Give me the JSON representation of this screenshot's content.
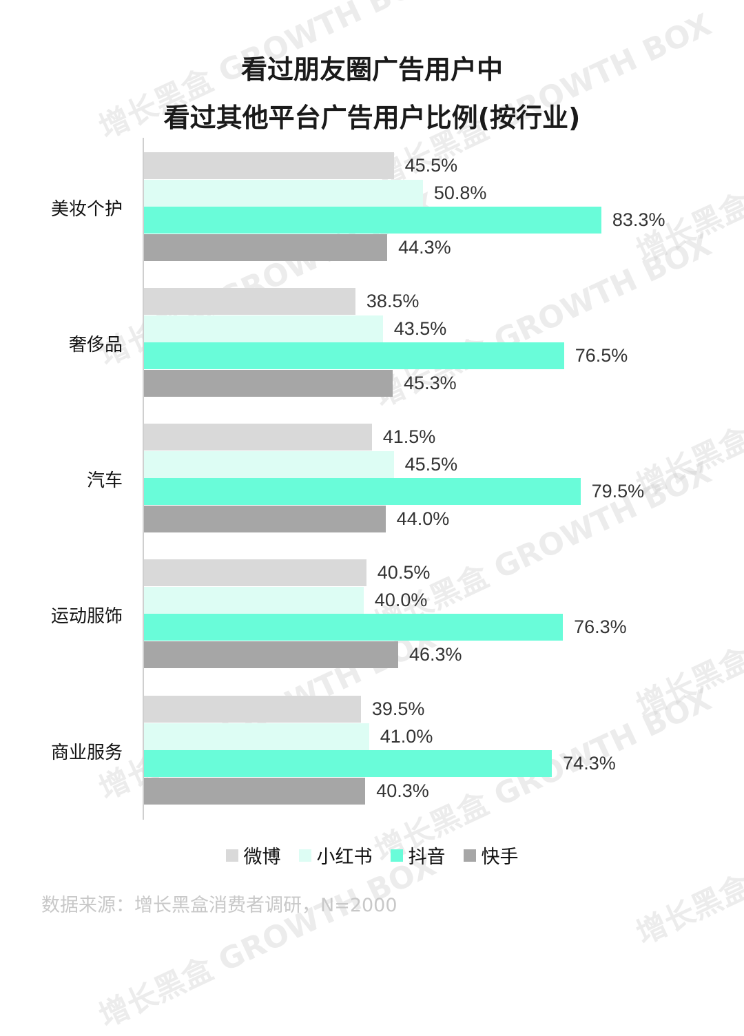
{
  "title_line1": "看过朋友圈广告用户中",
  "title_line2": "看过其他平台广告用户比例(按行业)",
  "legend": [
    {
      "name": "微博",
      "color": "#d9d9d9"
    },
    {
      "name": "小红书",
      "color": "#ddfdf4"
    },
    {
      "name": "抖音",
      "color": "#69fcd9"
    },
    {
      "name": "快手",
      "color": "#a6a6a6"
    }
  ],
  "source": "数据来源：增长黑盒消费者调研，N=2000",
  "watermark": "增长黑盒 GROWTH BOX",
  "chart_data": {
    "type": "bar",
    "orientation": "horizontal",
    "title": "看过朋友圈广告用户中 看过其他平台广告用户比例(按行业)",
    "categories": [
      "美妆个护",
      "奢侈品",
      "汽车",
      "运动服饰",
      "商业服务"
    ],
    "series": [
      {
        "name": "微博",
        "color": "#d9d9d9",
        "values": [
          45.5,
          38.5,
          41.5,
          40.5,
          39.5
        ]
      },
      {
        "name": "小红书",
        "color": "#ddfdf4",
        "values": [
          50.8,
          43.5,
          45.5,
          40.0,
          41.0
        ]
      },
      {
        "name": "抖音",
        "color": "#69fcd9",
        "values": [
          83.3,
          76.5,
          79.5,
          76.3,
          74.3
        ]
      },
      {
        "name": "快手",
        "color": "#a6a6a6",
        "values": [
          44.3,
          45.3,
          44.0,
          46.3,
          40.3
        ]
      }
    ],
    "labels": [
      [
        "45.5%",
        "50.8%",
        "83.3%",
        "44.3%"
      ],
      [
        "38.5%",
        "43.5%",
        "76.5%",
        "45.3%"
      ],
      [
        "41.5%",
        "45.5%",
        "79.5%",
        "44.0%"
      ],
      [
        "40.5%",
        "40.0%",
        "76.3%",
        "46.3%"
      ],
      [
        "39.5%",
        "41.0%",
        "74.3%",
        "40.3%"
      ]
    ],
    "xlabel": "",
    "ylabel": "",
    "unit": "%",
    "grid": false,
    "legend_position": "bottom"
  }
}
